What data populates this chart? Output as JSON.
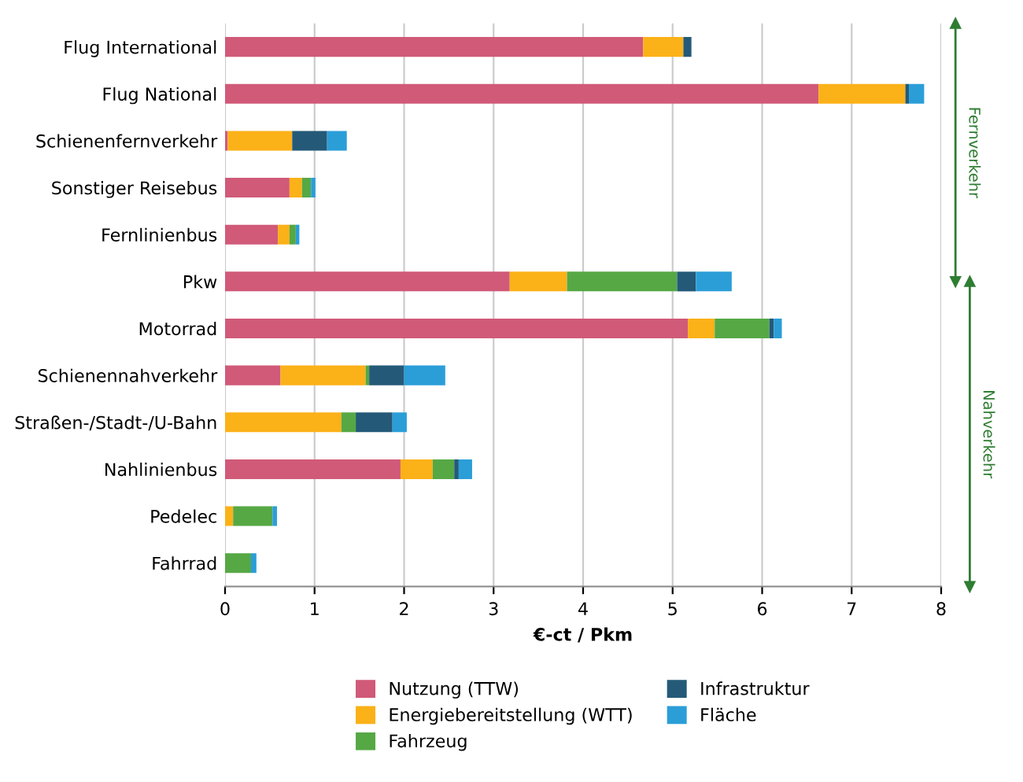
{
  "chart_data": {
    "type": "bar",
    "orientation": "horizontal",
    "stacked": true,
    "xlabel": "€-ct / Pkm",
    "categories": [
      "Flug International",
      "Flug National",
      "Schienenfernverkehr",
      "Sonstiger Reisebus",
      "Fernlinienbus",
      "Pkw",
      "Motorrad",
      "Schienennahverkehr",
      "Straßen-/Stadt-/U-Bahn",
      "Nahlinienbus",
      "Pedelec",
      "Fahrrad"
    ],
    "series": [
      {
        "name": "Nutzung (TTW)",
        "color": "#d05a78",
        "values": [
          4.67,
          6.63,
          0.03,
          0.72,
          0.59,
          3.18,
          5.17,
          0.62,
          0,
          1.96,
          0,
          0
        ]
      },
      {
        "name": "Energiebereitstellung (WTT)",
        "color": "#fbb118",
        "values": [
          0.45,
          0.97,
          0.72,
          0.14,
          0.13,
          0.64,
          0.3,
          0.95,
          1.3,
          0.36,
          0.09,
          0
        ]
      },
      {
        "name": "Fahrzeug",
        "color": "#56a845",
        "values": [
          0,
          0,
          0,
          0.1,
          0.07,
          1.23,
          0.61,
          0.04,
          0.16,
          0.24,
          0.44,
          0.29
        ]
      },
      {
        "name": "Infrastruktur",
        "color": "#245a78",
        "values": [
          0.09,
          0.04,
          0.39,
          0,
          0,
          0.21,
          0.05,
          0.39,
          0.41,
          0.05,
          0,
          0
        ]
      },
      {
        "name": "Fläche",
        "color": "#2b9ed8",
        "values": [
          0,
          0.17,
          0.22,
          0.05,
          0.04,
          0.4,
          0.09,
          0.46,
          0.16,
          0.15,
          0.05,
          0.06
        ]
      }
    ],
    "xlim": [
      0,
      8
    ],
    "xticks": [
      0,
      1,
      2,
      3,
      4,
      5,
      6,
      7,
      8
    ],
    "grid": "x",
    "legend": "bottom",
    "annotations": [
      "Fernverkehr",
      "Nahverkehr"
    ]
  }
}
